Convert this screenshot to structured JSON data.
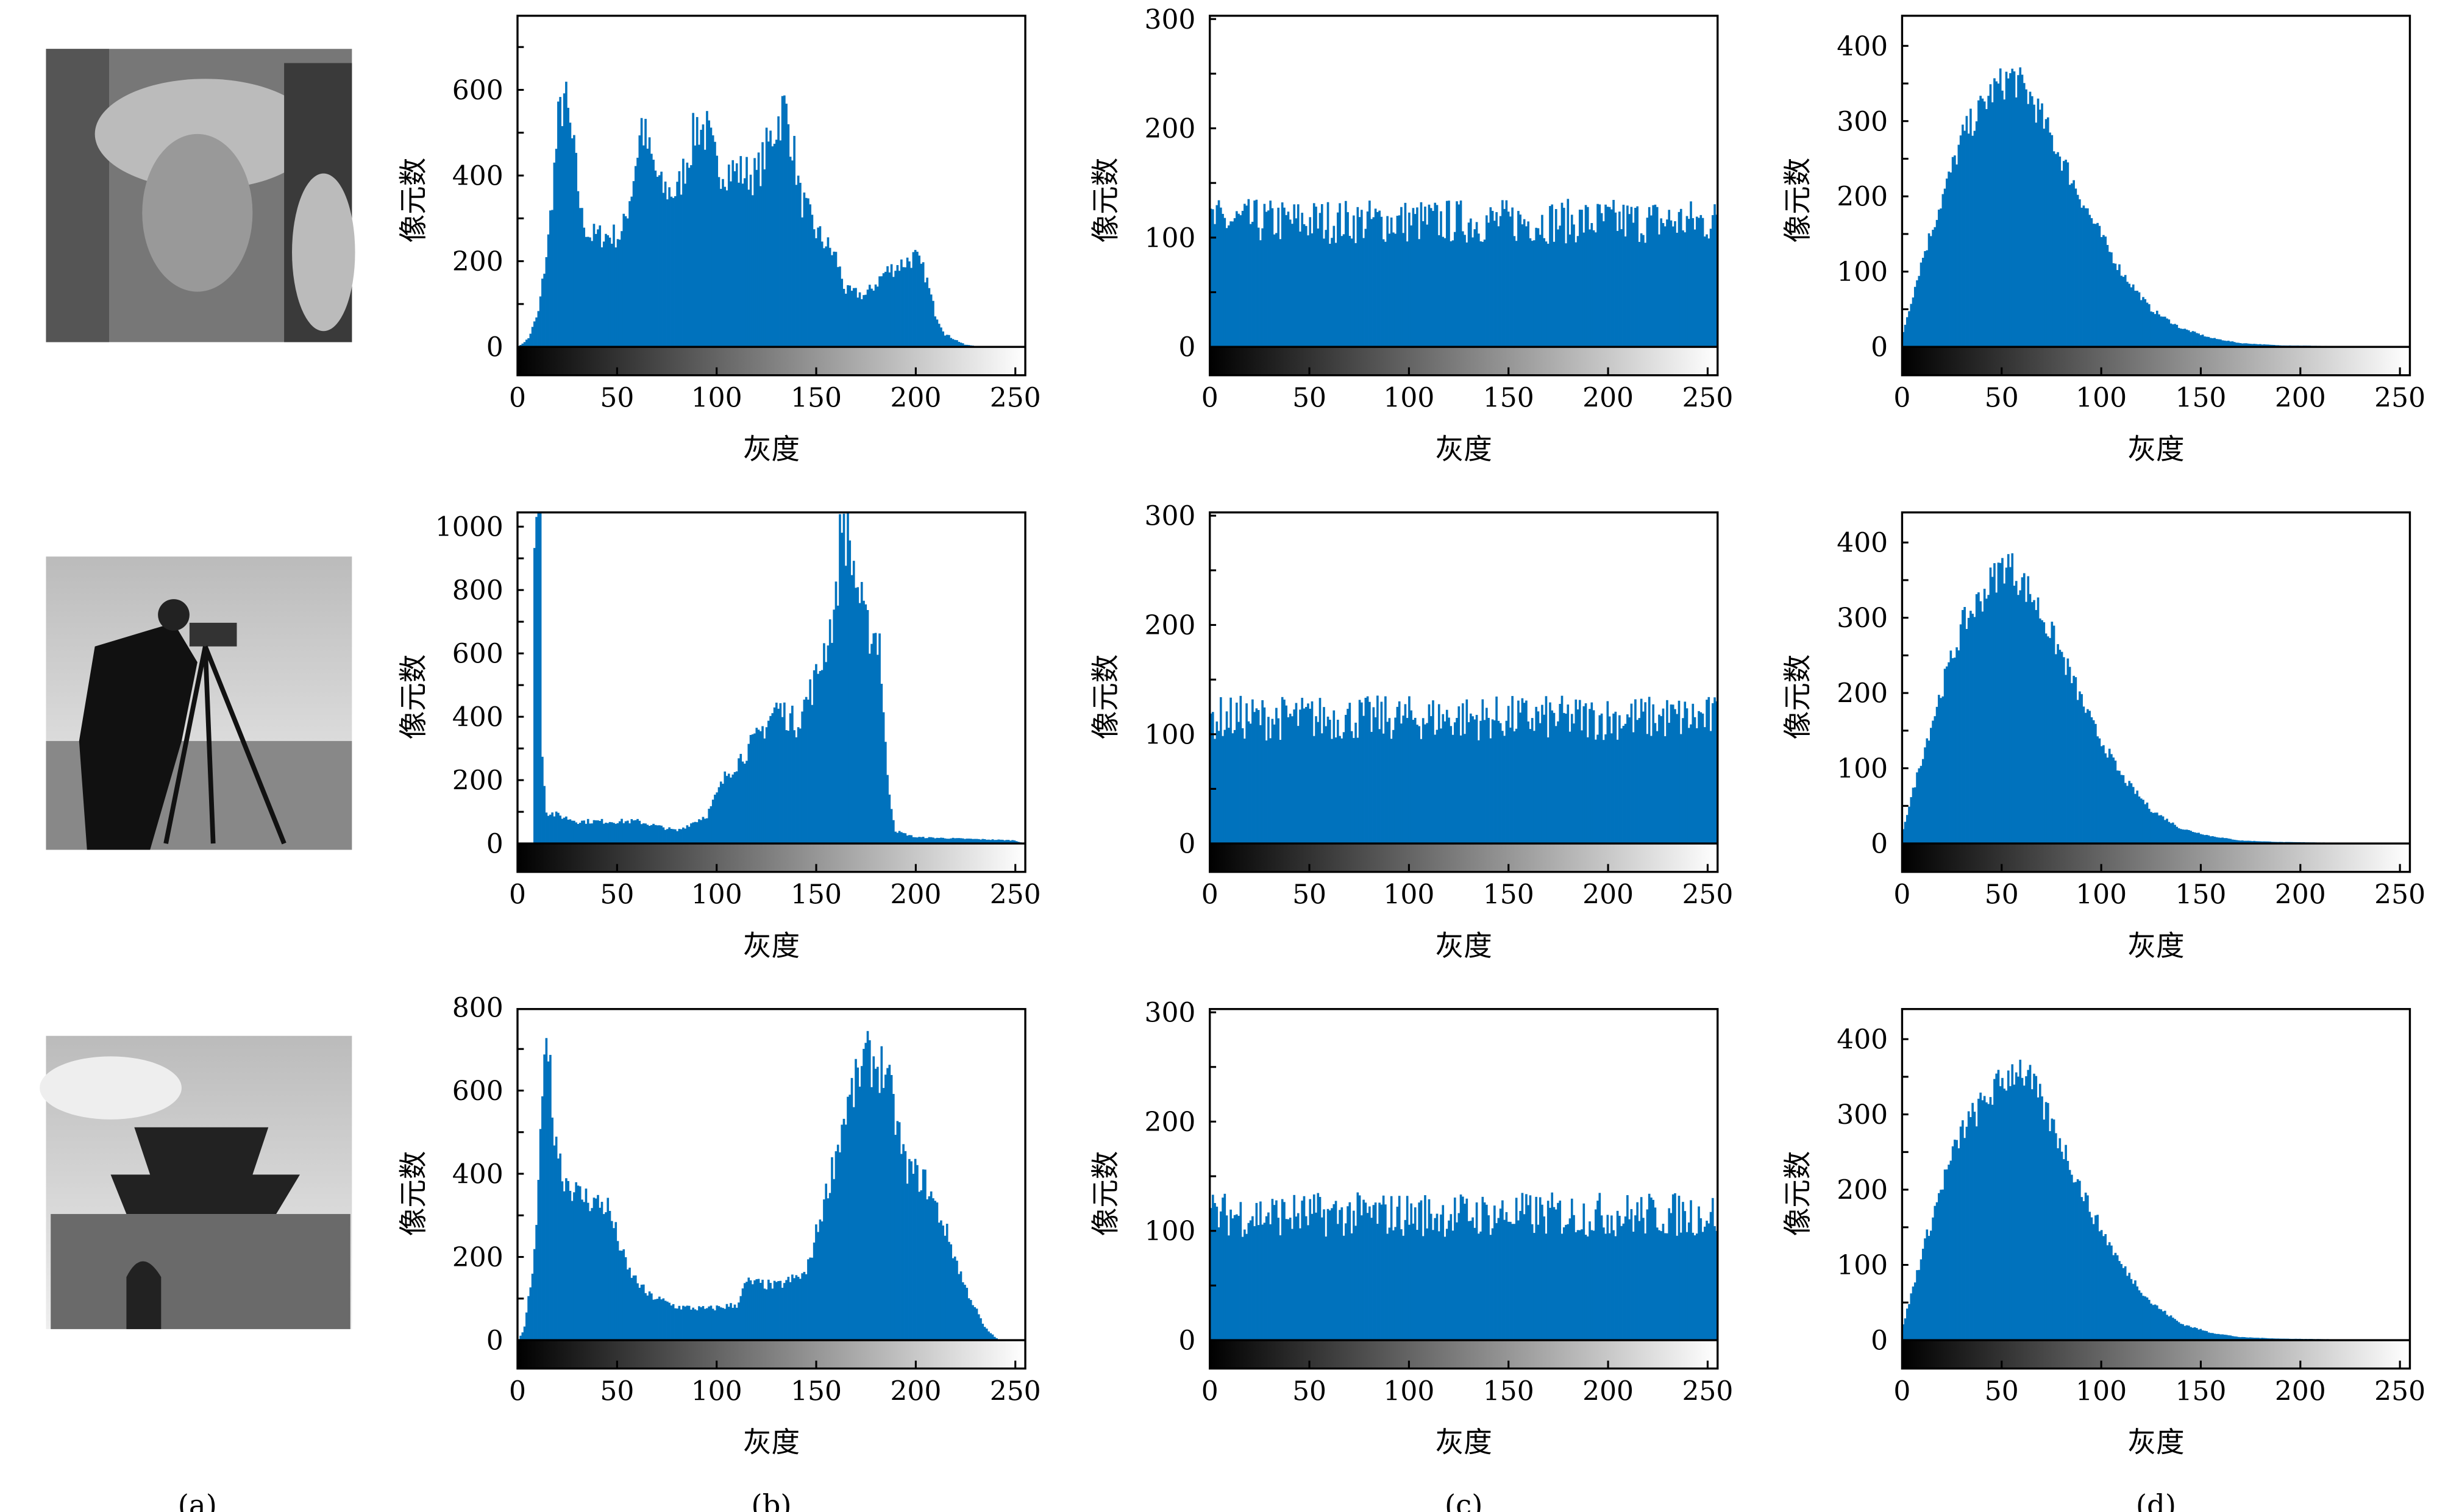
{
  "colors": {
    "bar": "#0072BD",
    "axis": "#000000"
  },
  "panel_labels": [
    "(a)",
    "(b)",
    "(c)",
    "(d)"
  ],
  "chart_data": [
    {
      "type": "bar",
      "row": 0,
      "col": "b",
      "xlabel": "灰度",
      "ylabel": "像元数",
      "xlim": [
        0,
        255
      ],
      "ylim": [
        0,
        773
      ],
      "xticks": [
        "0",
        "50",
        "100",
        "150",
        "200",
        "250"
      ],
      "yticks": [
        "0",
        "200",
        "400",
        "600"
      ],
      "ytick_values": [
        0,
        200,
        400,
        600
      ],
      "noise": 0.12,
      "envelope": [
        [
          0,
          0
        ],
        [
          5,
          20
        ],
        [
          10,
          80
        ],
        [
          15,
          250
        ],
        [
          20,
          520
        ],
        [
          23,
          590
        ],
        [
          28,
          450
        ],
        [
          32,
          300
        ],
        [
          36,
          260
        ],
        [
          52,
          260
        ],
        [
          57,
          370
        ],
        [
          62,
          520
        ],
        [
          66,
          450
        ],
        [
          72,
          370
        ],
        [
          80,
          360
        ],
        [
          90,
          520
        ],
        [
          95,
          500
        ],
        [
          100,
          420
        ],
        [
          120,
          400
        ],
        [
          130,
          520
        ],
        [
          134,
          560
        ],
        [
          138,
          480
        ],
        [
          142,
          350
        ],
        [
          150,
          270
        ],
        [
          160,
          210
        ],
        [
          165,
          130
        ],
        [
          175,
          120
        ],
        [
          185,
          175
        ],
        [
          200,
          210
        ],
        [
          205,
          170
        ],
        [
          210,
          80
        ],
        [
          215,
          30
        ],
        [
          225,
          5
        ],
        [
          235,
          0
        ],
        [
          255,
          0
        ]
      ]
    },
    {
      "type": "bar",
      "row": 0,
      "col": "c",
      "xlabel": "灰度",
      "ylabel": "像元数",
      "xlim": [
        0,
        255
      ],
      "ylim": [
        0,
        303
      ],
      "xticks": [
        "0",
        "50",
        "100",
        "150",
        "200",
        "250"
      ],
      "yticks": [
        "0",
        "100",
        "200",
        "300"
      ],
      "ytick_values": [
        0,
        100,
        200,
        300
      ],
      "noise": 0.18,
      "envelope": [
        [
          0,
          115
        ],
        [
          255,
          115
        ]
      ]
    },
    {
      "type": "bar",
      "row": 0,
      "col": "d",
      "xlabel": "灰度",
      "ylabel": "像元数",
      "xlim": [
        0,
        255
      ],
      "ylim": [
        0,
        440
      ],
      "xticks": [
        "0",
        "50",
        "100",
        "150",
        "200",
        "250"
      ],
      "yticks": [
        "0",
        "100",
        "200",
        "300",
        "400"
      ],
      "ytick_values": [
        0,
        100,
        200,
        300,
        400
      ],
      "noise": 0.07,
      "envelope": [
        [
          0,
          20
        ],
        [
          10,
          120
        ],
        [
          20,
          200
        ],
        [
          30,
          280
        ],
        [
          45,
          340
        ],
        [
          55,
          360
        ],
        [
          65,
          330
        ],
        [
          80,
          250
        ],
        [
          95,
          170
        ],
        [
          110,
          100
        ],
        [
          125,
          50
        ],
        [
          140,
          25
        ],
        [
          155,
          12
        ],
        [
          170,
          5
        ],
        [
          190,
          2
        ],
        [
          255,
          0
        ]
      ]
    },
    {
      "type": "bar",
      "row": 1,
      "col": "b",
      "xlabel": "灰度",
      "ylabel": "像元数",
      "xlim": [
        0,
        255
      ],
      "ylim": [
        0,
        1045
      ],
      "xticks": [
        "0",
        "50",
        "100",
        "150",
        "200",
        "250"
      ],
      "yticks": [
        "0",
        "200",
        "400",
        "600",
        "800",
        "1000"
      ],
      "ytick_values": [
        0,
        200,
        400,
        600,
        800,
        1000
      ],
      "noise": 0.12,
      "envelope": [
        [
          0,
          0
        ],
        [
          7,
          0
        ],
        [
          8,
          1045
        ],
        [
          11,
          1045
        ],
        [
          12,
          300
        ],
        [
          14,
          100
        ],
        [
          30,
          70
        ],
        [
          60,
          70
        ],
        [
          80,
          40
        ],
        [
          95,
          90
        ],
        [
          105,
          220
        ],
        [
          120,
          330
        ],
        [
          130,
          430
        ],
        [
          140,
          380
        ],
        [
          150,
          520
        ],
        [
          160,
          750
        ],
        [
          163,
          1045
        ],
        [
          168,
          900
        ],
        [
          175,
          680
        ],
        [
          182,
          650
        ],
        [
          186,
          200
        ],
        [
          190,
          40
        ],
        [
          200,
          20
        ],
        [
          250,
          10
        ],
        [
          255,
          0
        ]
      ]
    },
    {
      "type": "bar",
      "row": 1,
      "col": "c",
      "xlabel": "灰度",
      "ylabel": "像元数",
      "xlim": [
        0,
        255
      ],
      "ylim": [
        0,
        303
      ],
      "xticks": [
        "0",
        "50",
        "100",
        "150",
        "200",
        "250"
      ],
      "yticks": [
        "0",
        "100",
        "200",
        "300"
      ],
      "ytick_values": [
        0,
        100,
        200,
        300
      ],
      "noise": 0.18,
      "envelope": [
        [
          0,
          115
        ],
        [
          255,
          115
        ]
      ]
    },
    {
      "type": "bar",
      "row": 1,
      "col": "d",
      "xlabel": "灰度",
      "ylabel": "像元数",
      "xlim": [
        0,
        255
      ],
      "ylim": [
        0,
        440
      ],
      "xticks": [
        "0",
        "50",
        "100",
        "150",
        "200",
        "250"
      ],
      "yticks": [
        "0",
        "100",
        "200",
        "300",
        "400"
      ],
      "ytick_values": [
        0,
        100,
        200,
        300,
        400
      ],
      "noise": 0.07,
      "envelope": [
        [
          0,
          20
        ],
        [
          10,
          120
        ],
        [
          20,
          210
        ],
        [
          30,
          290
        ],
        [
          45,
          350
        ],
        [
          52,
          375
        ],
        [
          65,
          330
        ],
        [
          80,
          250
        ],
        [
          95,
          160
        ],
        [
          110,
          90
        ],
        [
          125,
          45
        ],
        [
          140,
          20
        ],
        [
          155,
          10
        ],
        [
          170,
          4
        ],
        [
          190,
          2
        ],
        [
          255,
          0
        ]
      ]
    },
    {
      "type": "bar",
      "row": 2,
      "col": "b",
      "xlabel": "灰度",
      "ylabel": "像元数",
      "xlim": [
        0,
        255
      ],
      "ylim": [
        0,
        796
      ],
      "xticks": [
        "0",
        "50",
        "100",
        "150",
        "200",
        "250"
      ],
      "yticks": [
        "0",
        "200",
        "400",
        "600",
        "800"
      ],
      "ytick_values": [
        0,
        200,
        400,
        600,
        800
      ],
      "noise": 0.1,
      "envelope": [
        [
          0,
          0
        ],
        [
          3,
          30
        ],
        [
          8,
          200
        ],
        [
          12,
          550
        ],
        [
          14,
          790
        ],
        [
          17,
          550
        ],
        [
          22,
          400
        ],
        [
          30,
          350
        ],
        [
          45,
          320
        ],
        [
          55,
          170
        ],
        [
          65,
          110
        ],
        [
          80,
          80
        ],
        [
          95,
          75
        ],
        [
          110,
          85
        ],
        [
          115,
          140
        ],
        [
          130,
          130
        ],
        [
          145,
          160
        ],
        [
          155,
          350
        ],
        [
          165,
          550
        ],
        [
          175,
          680
        ],
        [
          185,
          650
        ],
        [
          195,
          420
        ],
        [
          205,
          380
        ],
        [
          215,
          270
        ],
        [
          225,
          130
        ],
        [
          235,
          30
        ],
        [
          242,
          0
        ],
        [
          255,
          0
        ]
      ]
    },
    {
      "type": "bar",
      "row": 2,
      "col": "c",
      "xlabel": "灰度",
      "ylabel": "像元数",
      "xlim": [
        0,
        255
      ],
      "ylim": [
        0,
        303
      ],
      "xticks": [
        "0",
        "50",
        "100",
        "150",
        "200",
        "250"
      ],
      "yticks": [
        "0",
        "100",
        "200",
        "300"
      ],
      "ytick_values": [
        0,
        100,
        200,
        300
      ],
      "noise": 0.18,
      "envelope": [
        [
          0,
          115
        ],
        [
          255,
          115
        ]
      ]
    },
    {
      "type": "bar",
      "row": 2,
      "col": "d",
      "xlabel": "灰度",
      "ylabel": "像元数",
      "xlim": [
        0,
        255
      ],
      "ylim": [
        0,
        440
      ],
      "xticks": [
        "0",
        "50",
        "100",
        "150",
        "200",
        "250"
      ],
      "yticks": [
        "0",
        "100",
        "200",
        "300",
        "400"
      ],
      "ytick_values": [
        0,
        100,
        200,
        300,
        400
      ],
      "noise": 0.07,
      "envelope": [
        [
          0,
          20
        ],
        [
          10,
          120
        ],
        [
          20,
          210
        ],
        [
          30,
          280
        ],
        [
          45,
          330
        ],
        [
          58,
          365
        ],
        [
          65,
          340
        ],
        [
          80,
          260
        ],
        [
          95,
          170
        ],
        [
          110,
          100
        ],
        [
          125,
          50
        ],
        [
          140,
          22
        ],
        [
          155,
          10
        ],
        [
          170,
          4
        ],
        [
          190,
          2
        ],
        [
          255,
          0
        ]
      ]
    }
  ]
}
